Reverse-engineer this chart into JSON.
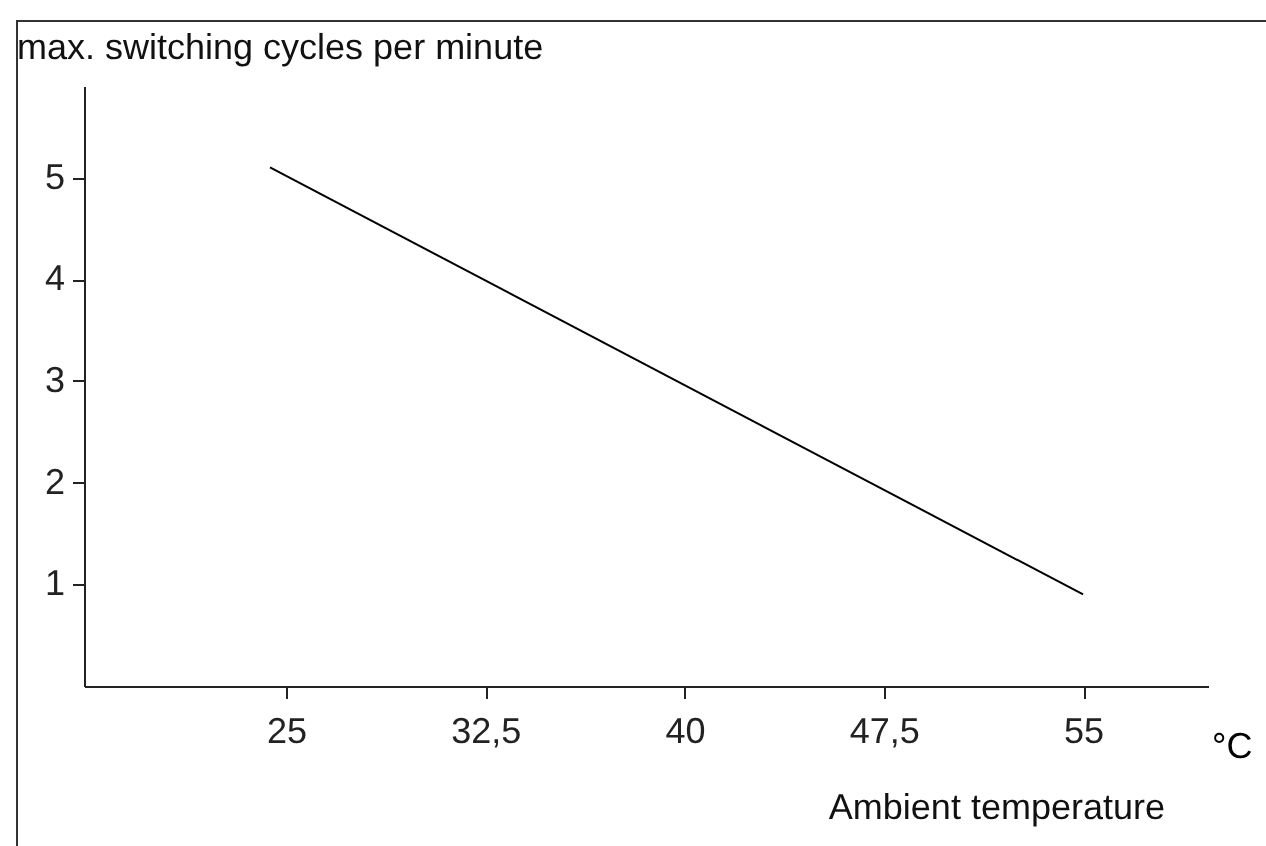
{
  "chart_data": {
    "type": "line",
    "xlabel": "Ambient temperature",
    "ylabel": "max. switching cycles per minute",
    "annotations": [
      "°C"
    ],
    "x": [
      24.4,
      55
    ],
    "series": [
      {
        "color": "#000000",
        "values": [
          5.1,
          0.9
        ]
      }
    ],
    "xlim": [
      17.4,
      59.7
    ],
    "ylim": [
      0,
      5.9
    ],
    "xticks": [
      25,
      {
        "value": 32.5,
        "label": "32,5"
      },
      40,
      {
        "value": 47.5,
        "label": "47,5"
      },
      55
    ],
    "yticks": [
      1,
      2,
      3,
      4,
      5
    ],
    "grid": false
  }
}
